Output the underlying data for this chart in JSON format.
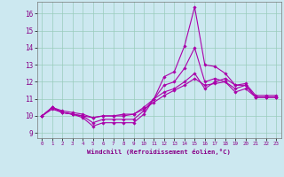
{
  "xlabel": "Windchill (Refroidissement éolien,°C)",
  "background_color": "#cce8f0",
  "grid_color": "#99ccbb",
  "line_color": "#aa00aa",
  "tick_color": "#880088",
  "x_ticks": [
    0,
    1,
    2,
    3,
    4,
    5,
    6,
    7,
    8,
    9,
    10,
    11,
    12,
    13,
    14,
    15,
    16,
    17,
    18,
    19,
    20,
    21,
    22,
    23
  ],
  "y_ticks": [
    9,
    10,
    11,
    12,
    13,
    14,
    15,
    16
  ],
  "xlim": [
    -0.5,
    23.5
  ],
  "ylim": [
    8.7,
    16.7
  ],
  "series": [
    {
      "x": [
        0,
        1,
        2,
        3,
        4,
        5,
        6,
        7,
        8,
        9,
        10,
        11,
        12,
        13,
        14,
        15,
        16,
        17,
        18,
        19,
        20,
        21,
        22,
        23
      ],
      "y": [
        10.0,
        10.5,
        10.2,
        10.1,
        9.9,
        9.4,
        9.6,
        9.6,
        9.6,
        9.6,
        10.1,
        11.0,
        12.3,
        12.6,
        14.1,
        16.4,
        13.0,
        12.9,
        12.5,
        11.8,
        11.8,
        11.1,
        11.1,
        11.1
      ]
    },
    {
      "x": [
        0,
        1,
        2,
        3,
        4,
        5,
        6,
        7,
        8,
        9,
        10,
        11,
        12,
        13,
        14,
        15,
        16,
        17,
        18,
        19,
        20,
        21,
        22,
        23
      ],
      "y": [
        10.0,
        10.5,
        10.2,
        10.1,
        10.0,
        9.6,
        9.8,
        9.8,
        9.8,
        9.8,
        10.3,
        11.0,
        11.8,
        12.0,
        12.8,
        14.0,
        12.0,
        12.2,
        12.0,
        11.6,
        11.8,
        11.1,
        11.1,
        11.1
      ]
    },
    {
      "x": [
        0,
        1,
        2,
        3,
        4,
        5,
        6,
        7,
        8,
        9,
        10,
        11,
        12,
        13,
        14,
        15,
        16,
        17,
        18,
        19,
        20,
        21,
        22,
        23
      ],
      "y": [
        10.0,
        10.5,
        10.3,
        10.2,
        10.1,
        9.9,
        10.0,
        10.0,
        10.1,
        10.1,
        10.5,
        11.0,
        11.4,
        11.6,
        12.0,
        12.5,
        11.6,
        12.0,
        12.2,
        11.8,
        11.9,
        11.2,
        11.2,
        11.2
      ]
    },
    {
      "x": [
        0,
        1,
        2,
        3,
        4,
        5,
        6,
        7,
        8,
        9,
        10,
        11,
        12,
        13,
        14,
        15,
        16,
        17,
        18,
        19,
        20,
        21,
        22,
        23
      ],
      "y": [
        10.0,
        10.4,
        10.2,
        10.1,
        10.0,
        9.9,
        10.0,
        10.0,
        10.0,
        10.1,
        10.4,
        10.8,
        11.2,
        11.5,
        11.8,
        12.2,
        11.8,
        11.9,
        12.0,
        11.4,
        11.6,
        11.1,
        11.1,
        11.1
      ]
    }
  ]
}
